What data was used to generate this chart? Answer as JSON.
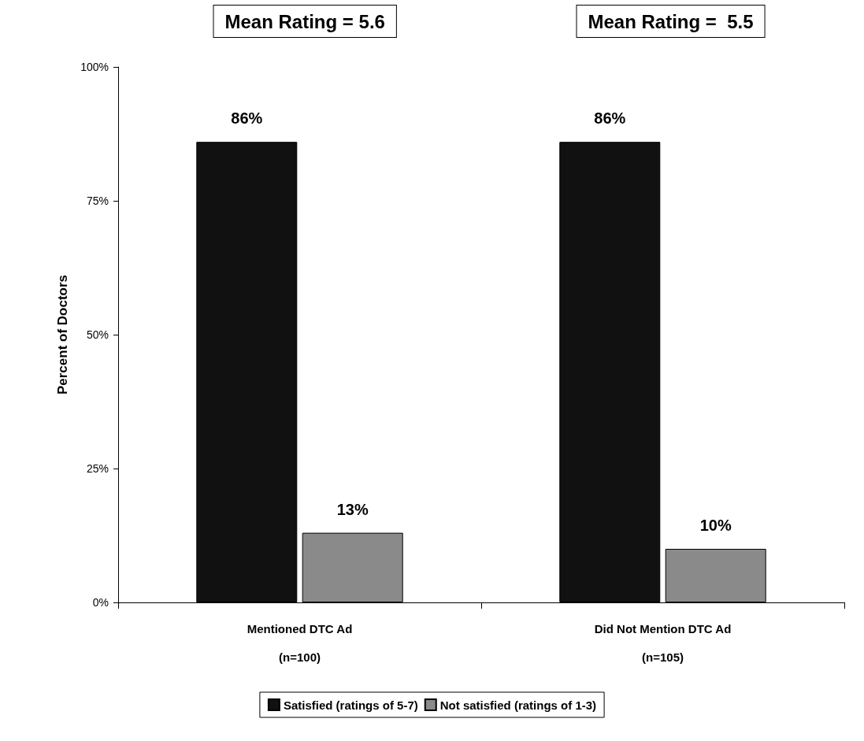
{
  "chart_data": {
    "type": "bar",
    "ylabel": "Percent of Doctors",
    "categories": [
      "Mentioned DTC Ad\n\n(n=100)",
      "Did Not Mention DTC Ad\n\n(n=105)"
    ],
    "series": [
      {
        "name": "Satisfied (ratings of 5-7)",
        "color": "#111111",
        "values": [
          86,
          86
        ],
        "value_labels": [
          "86%",
          "86%"
        ]
      },
      {
        "name": "Not satisfied (ratings of 1-3)",
        "color": "#8a8a8a",
        "values": [
          13,
          10
        ],
        "value_labels": [
          "13%",
          "10%"
        ]
      }
    ],
    "annotations": [
      "Mean Rating = 5.6",
      "Mean Rating =  5.5"
    ],
    "ylim": [
      0,
      100
    ],
    "yticks": [
      {
        "value": 0,
        "label": "0%"
      },
      {
        "value": 25,
        "label": "25%"
      },
      {
        "value": 50,
        "label": "50%"
      },
      {
        "value": 75,
        "label": "75%"
      },
      {
        "value": 100,
        "label": "100%"
      }
    ],
    "grid": false,
    "legend": "bottom"
  }
}
